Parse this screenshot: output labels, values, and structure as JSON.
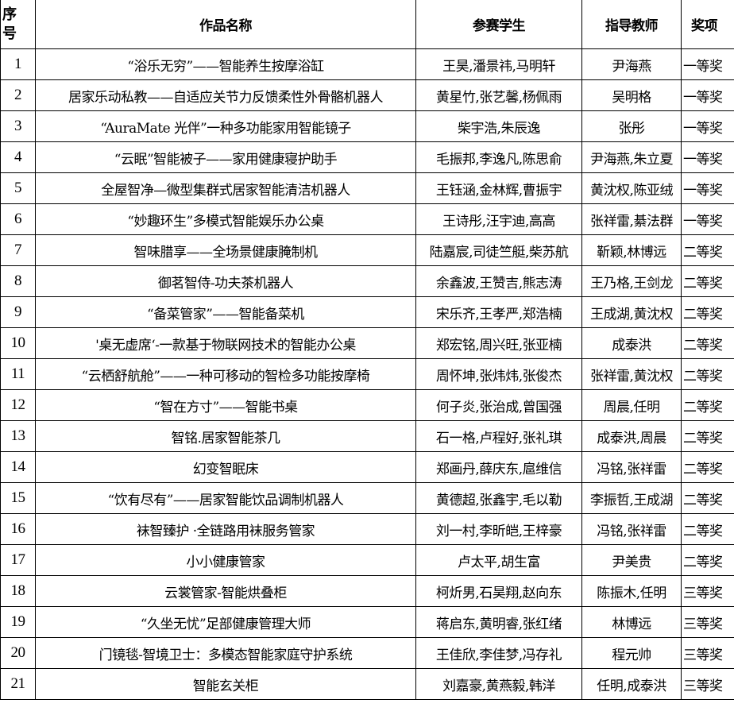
{
  "headers": {
    "index": "序\n号",
    "index_1": "序",
    "index_2": "号",
    "title": "作品名称",
    "students": "参赛学生",
    "teacher": "指导教师",
    "award": "奖项"
  },
  "rows": [
    {
      "no": "1",
      "title": "“浴乐无穷”——智能养生按摩浴缸",
      "students": "王昊,潘景祎,马明轩",
      "teacher": "尹海燕",
      "award": "一等奖"
    },
    {
      "no": "2",
      "title": "居家乐动私教——自适应关节力反馈柔性外骨骼机器人",
      "students": "黄星竹,张艺馨,杨佩雨",
      "teacher": "吴明格",
      "award": "一等奖"
    },
    {
      "no": "3",
      "title": "“AuraMate 光伴”一种多功能家用智能镜子",
      "students": "柴宇浩,朱辰逸",
      "teacher": "张彤",
      "award": "一等奖"
    },
    {
      "no": "4",
      "title": "“云眠”智能被子——家用健康寝护助手",
      "students": "毛振邦,李逸凡,陈思俞",
      "teacher": "尹海燕,朱立夏",
      "award": "一等奖"
    },
    {
      "no": "5",
      "title": "全屋智净—微型集群式居家智能清洁机器人",
      "students": "王钰涵,金林辉,曹振宇",
      "teacher": "黄沈权,陈亚绒",
      "award": "一等奖"
    },
    {
      "no": "6",
      "title": "“妙趣环生”多模式智能娱乐办公桌",
      "students": "王诗彤,汪宇迪,高高",
      "teacher": "张祥雷,綦法群",
      "award": "一等奖"
    },
    {
      "no": "7",
      "title": "智味腊享——全场景健康腌制机",
      "students": "陆嘉宸,司徒竺艇,柴苏航",
      "teacher": "靳颖,林博远",
      "award": "二等奖"
    },
    {
      "no": "8",
      "title": "御茗智侍-功夫茶机器人",
      "students": "余鑫波,王赞吉,熊志涛",
      "teacher": "王乃格,王剑龙",
      "award": "二等奖"
    },
    {
      "no": "9",
      "title": "“备菜管家”——智能备菜机",
      "students": "宋乐齐,王孝严,郑浩楠",
      "teacher": "王成湖,黄沈权",
      "award": "二等奖"
    },
    {
      "no": "10",
      "title": "'桌无虚席‘-一款基于物联网技术的智能办公桌",
      "students": "郑宏铭,周兴旺,张亚楠",
      "teacher": "成泰洪",
      "award": "二等奖"
    },
    {
      "no": "11",
      "title": "“云栖舒航舱”——一种可移动的智检多功能按摩椅",
      "students": "周怀坤,张炜炜,张俊杰",
      "teacher": "张祥雷,黄沈权",
      "award": "二等奖"
    },
    {
      "no": "12",
      "title": "“智在方寸”——智能书桌",
      "students": "何子炎,张治成,曾国强",
      "teacher": "周晨,任明",
      "award": "二等奖"
    },
    {
      "no": "13",
      "title": "智铭.居家智能茶几",
      "students": "石一格,卢程好,张礼琪",
      "teacher": "成泰洪,周晨",
      "award": "二等奖"
    },
    {
      "no": "14",
      "title": "幻变智眠床",
      "students": "郑画丹,薛庆东,扈维信",
      "teacher": "冯铭,张祥雷",
      "award": "二等奖"
    },
    {
      "no": "15",
      "title": "“饮有尽有”——居家智能饮品调制机器人",
      "students": "黄德超,张鑫宇,毛以勒",
      "teacher": "李振哲,王成湖",
      "award": "二等奖"
    },
    {
      "no": "16",
      "title": "袜智臻护 ·全链路用袜服务管家",
      "students": "刘一村,李昕皑,王梓豪",
      "teacher": "冯铭,张祥雷",
      "award": "二等奖"
    },
    {
      "no": "17",
      "title": "小小健康管家",
      "students": "卢太平,胡生富",
      "teacher": "尹美贵",
      "award": "二等奖"
    },
    {
      "no": "18",
      "title": "云裳管家-智能烘叠柜",
      "students": "柯炘男,石昊翔,赵向东",
      "teacher": "陈振木,任明",
      "award": "三等奖"
    },
    {
      "no": "19",
      "title": "“久坐无忧”足部健康管理大师",
      "students": "蒋启东,黄明睿,张红绪",
      "teacher": "林博远",
      "award": "三等奖"
    },
    {
      "no": "20",
      "title": "门镜毯-智境卫士：多模态智能家庭守护系统",
      "students": "王佳欣,李佳梦,冯存礼",
      "teacher": "程元帅",
      "award": "三等奖"
    },
    {
      "no": "21",
      "title": "智能玄关柜",
      "students": "刘嘉豪,黄燕毅,韩洋",
      "teacher": "任明,成泰洪",
      "award": "三等奖"
    }
  ]
}
